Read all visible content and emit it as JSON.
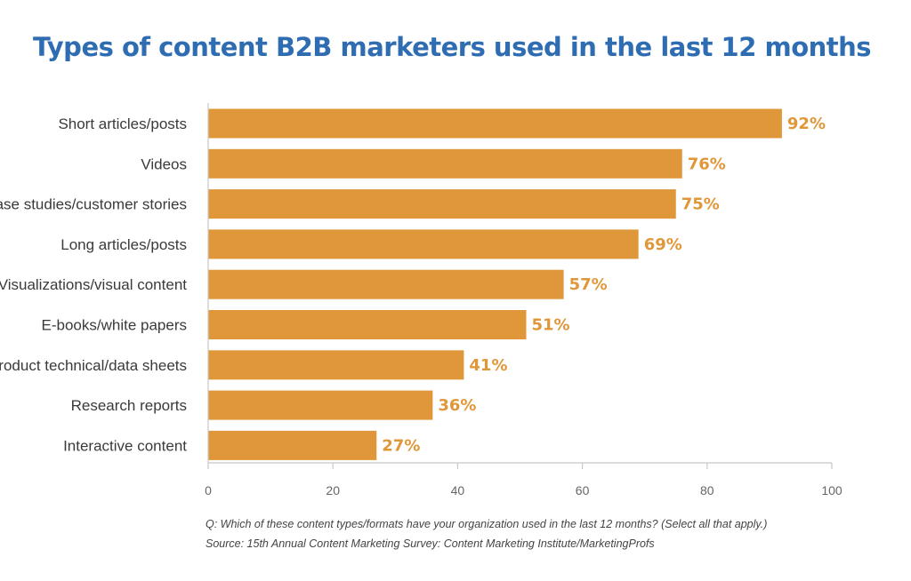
{
  "chart_data": {
    "type": "bar",
    "orientation": "horizontal",
    "title": "Types of content B2B marketers used in the last 12 months",
    "categories": [
      "Short articles/posts",
      "Videos",
      "Case studies/customer stories",
      "Long articles/posts",
      "Visualizations/visual content",
      "E-books/white papers",
      "Product technical/data sheets",
      "Research reports",
      "Interactive content"
    ],
    "values": [
      92,
      76,
      75,
      69,
      57,
      51,
      41,
      36,
      27
    ],
    "value_labels": [
      "92%",
      "76%",
      "75%",
      "69%",
      "57%",
      "51%",
      "41%",
      "36%",
      "27%"
    ],
    "xlim": [
      0,
      100
    ],
    "xticks": [
      0,
      20,
      40,
      60,
      80,
      100
    ],
    "grid": false,
    "legend": "none",
    "bar_color": "#e0973a",
    "label_color": "#e0973a",
    "title_color": "#2f6db3"
  },
  "footnotes": {
    "question": "Q: Which of these content types/formats have your organization used in the last 12 months? (Select all that apply.)",
    "source": "Source: 15th Annual Content Marketing Survey: Content Marketing Institute/MarketingProfs"
  }
}
